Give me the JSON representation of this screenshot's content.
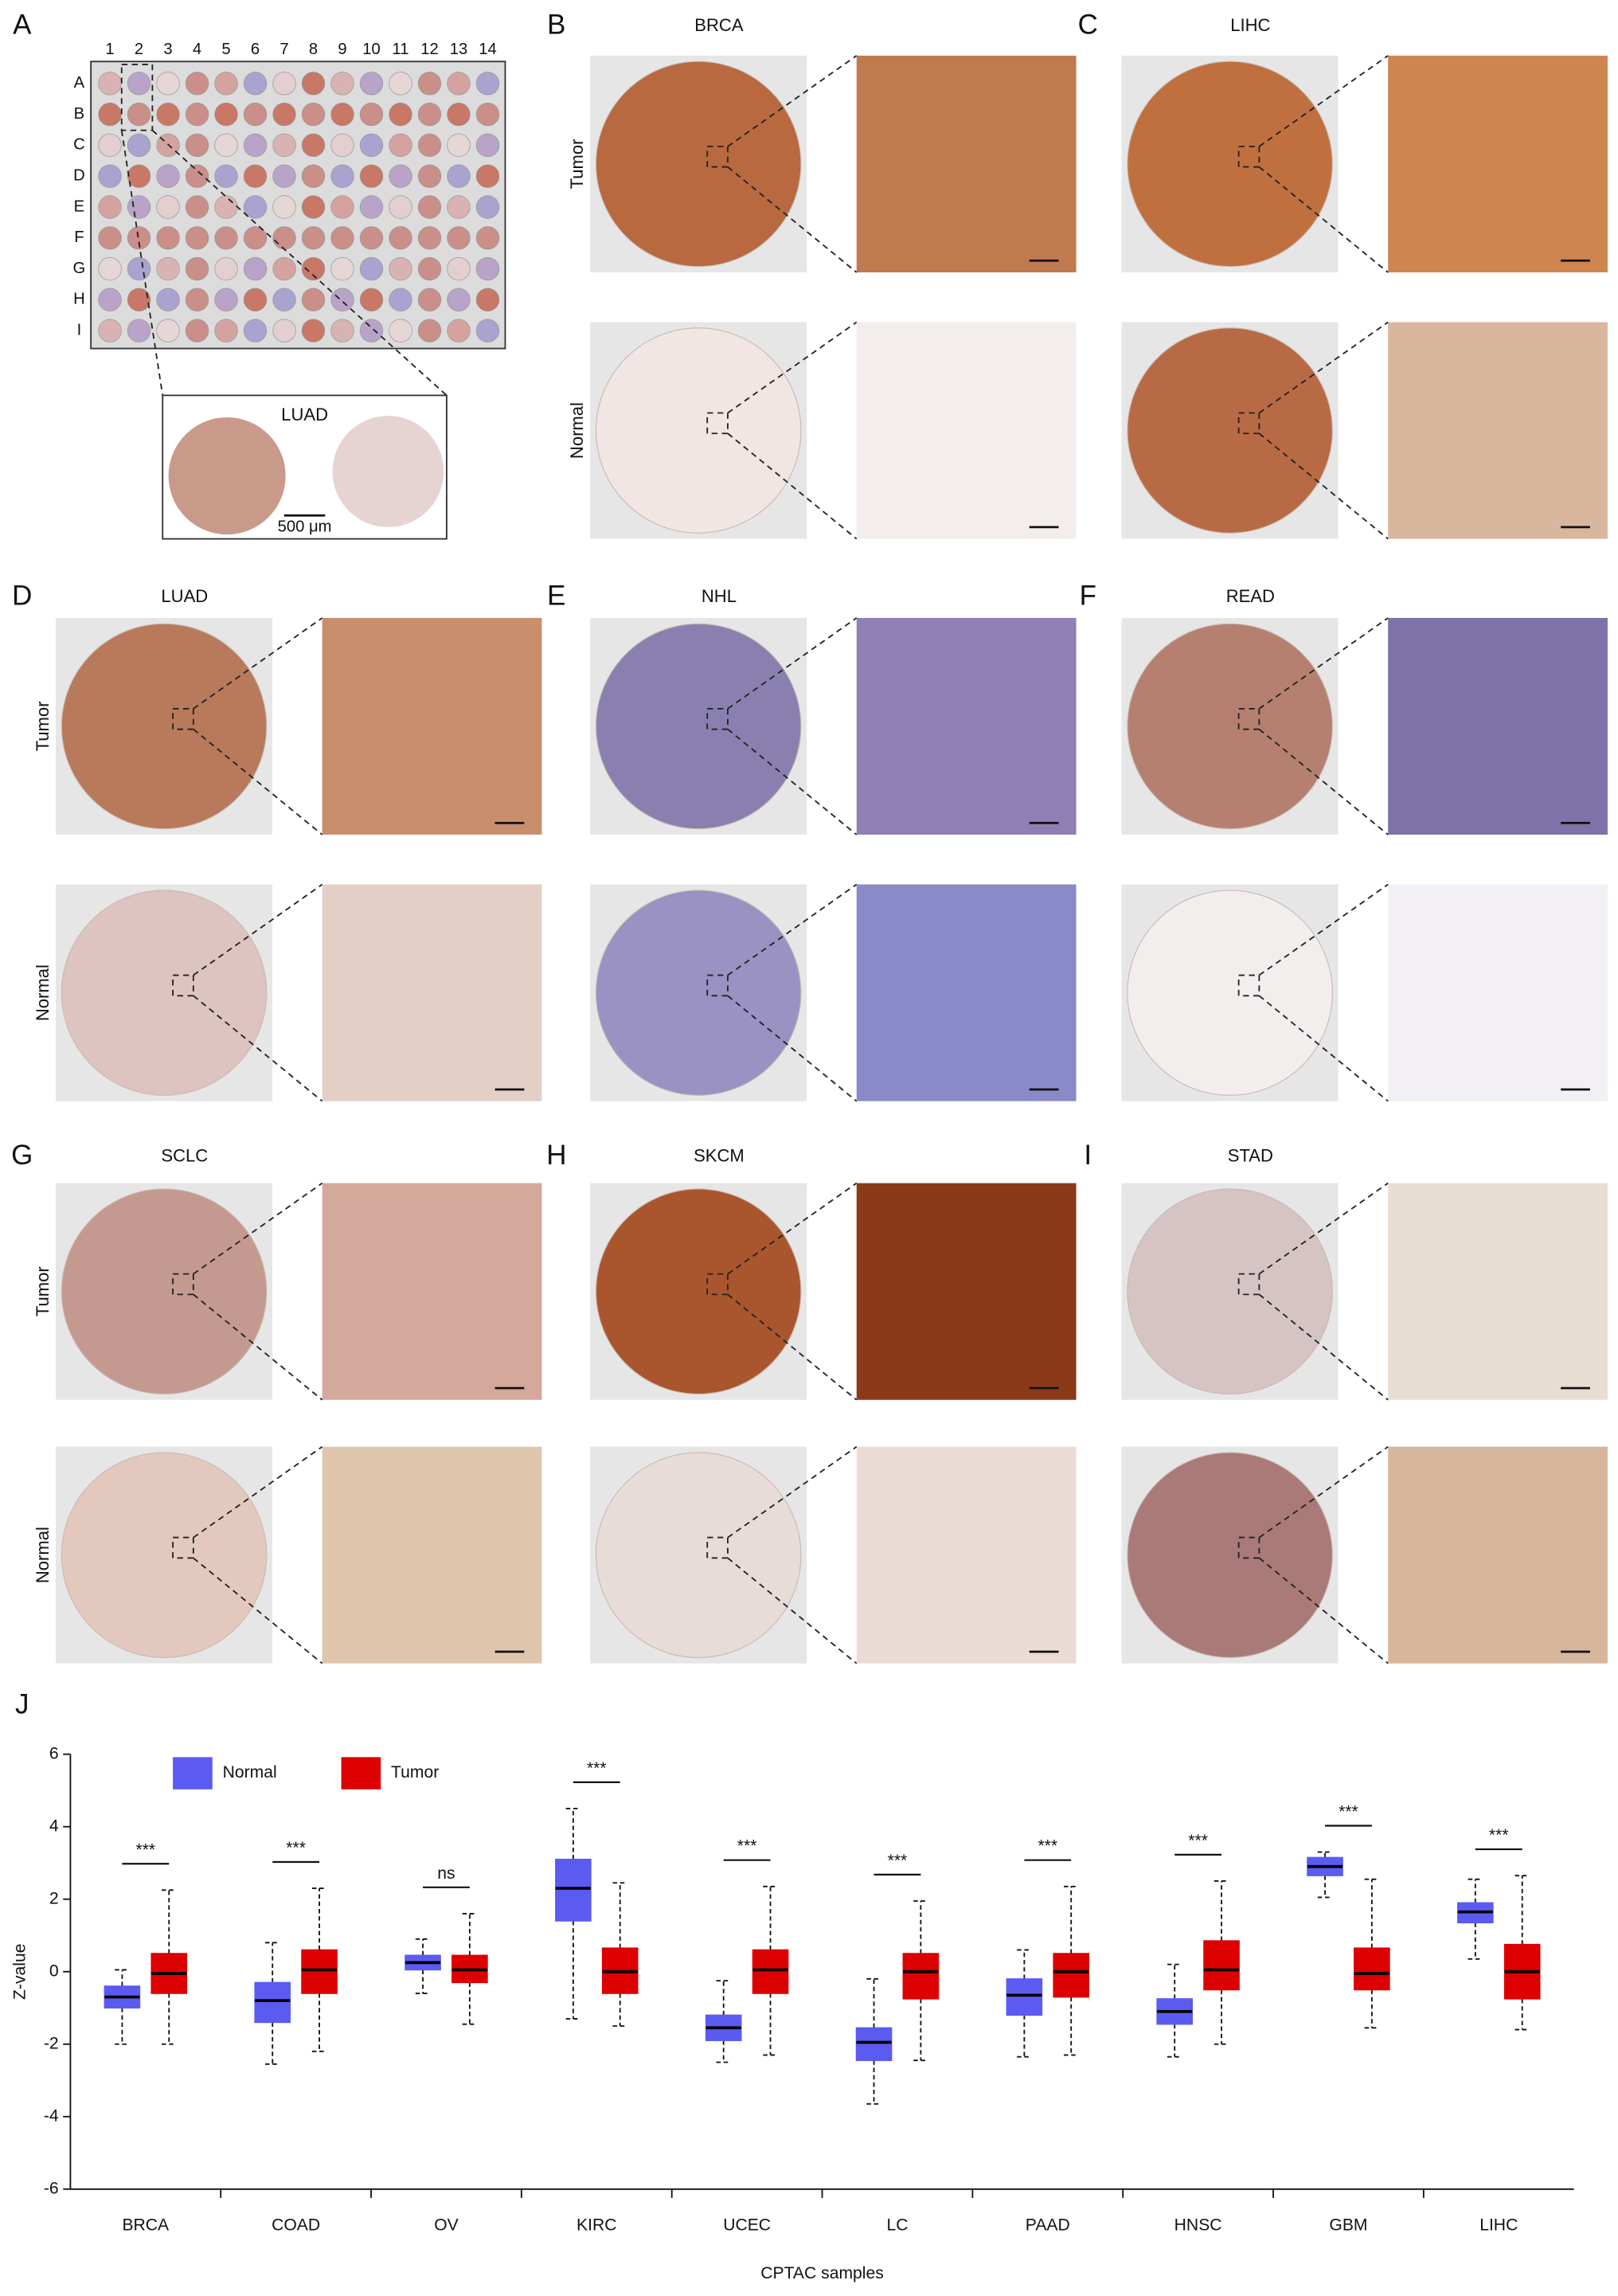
{
  "plate": {
    "letter": "A",
    "columns": [
      "1",
      "2",
      "3",
      "4",
      "5",
      "6",
      "7",
      "8",
      "9",
      "10",
      "11",
      "12",
      "13",
      "14"
    ],
    "rows": [
      "A",
      "B",
      "C",
      "D",
      "E",
      "F",
      "G",
      "H",
      "I"
    ],
    "inset_title": "LUAD",
    "scale_bar": "500 μm"
  },
  "panels": [
    {
      "letter": "B",
      "title": "BRCA",
      "row_labels": [
        "Tumor",
        "Normal"
      ]
    },
    {
      "letter": "C",
      "title": "LIHC"
    },
    {
      "letter": "D",
      "title": "LUAD",
      "row_labels": [
        "Tumor",
        "Normal"
      ]
    },
    {
      "letter": "E",
      "title": "NHL"
    },
    {
      "letter": "F",
      "title": "READ"
    },
    {
      "letter": "G",
      "title": "SCLC",
      "row_labels": [
        "Tumor",
        "Normal"
      ]
    },
    {
      "letter": "H",
      "title": "SKCM"
    },
    {
      "letter": "I",
      "title": "STAD"
    }
  ],
  "chart_data": {
    "type": "box",
    "letter": "J",
    "y_label": "Z-value",
    "x_label": "CPTAC samples",
    "categories": [
      "BRCA",
      "COAD",
      "OV",
      "KIRC",
      "UCEC",
      "LC",
      "PAAD",
      "HNSC",
      "GBM",
      "LIHC"
    ],
    "significance": [
      "***",
      "***",
      "ns",
      "***",
      "***",
      "***",
      "***",
      "***",
      "***",
      "***"
    ],
    "ylim": [
      -6,
      6
    ],
    "yticks": [
      -6,
      -4,
      -2,
      0,
      2,
      4,
      6
    ],
    "legend": "top-left",
    "series": [
      {
        "name": "Normal",
        "color": "#5b5bf2",
        "low": [
          -2.0,
          -2.55,
          -0.6,
          -1.3,
          -2.5,
          -3.65,
          -2.35,
          -2.35,
          2.05,
          0.35
        ],
        "q1": [
          -1.0,
          -1.4,
          0.05,
          1.4,
          -1.9,
          -2.45,
          -1.2,
          -1.45,
          2.65,
          1.35
        ],
        "median": [
          -0.7,
          -0.8,
          0.25,
          2.3,
          -1.55,
          -1.95,
          -0.65,
          -1.1,
          2.9,
          1.65
        ],
        "q3": [
          -0.4,
          -0.3,
          0.45,
          3.1,
          -1.2,
          -1.55,
          -0.2,
          -0.75,
          3.15,
          1.9
        ],
        "high": [
          0.05,
          0.8,
          0.9,
          4.5,
          -0.25,
          -0.2,
          0.6,
          0.2,
          3.3,
          2.55
        ]
      },
      {
        "name": "Tumor",
        "color": "#dd0000",
        "low": [
          -2.0,
          -2.2,
          -1.45,
          -1.5,
          -2.3,
          -2.45,
          -2.3,
          -2.0,
          -1.55,
          -1.6
        ],
        "q1": [
          -0.6,
          -0.6,
          -0.3,
          -0.6,
          -0.6,
          -0.75,
          -0.7,
          -0.5,
          -0.5,
          -0.75
        ],
        "median": [
          -0.05,
          0.05,
          0.05,
          0,
          0.05,
          0,
          0,
          0.05,
          -0.05,
          0
        ],
        "q3": [
          0.5,
          0.6,
          0.45,
          0.65,
          0.6,
          0.5,
          0.5,
          0.85,
          0.65,
          0.75
        ],
        "high": [
          2.25,
          2.3,
          1.6,
          2.45,
          2.35,
          1.95,
          2.35,
          2.5,
          2.55,
          2.65
        ]
      }
    ]
  }
}
